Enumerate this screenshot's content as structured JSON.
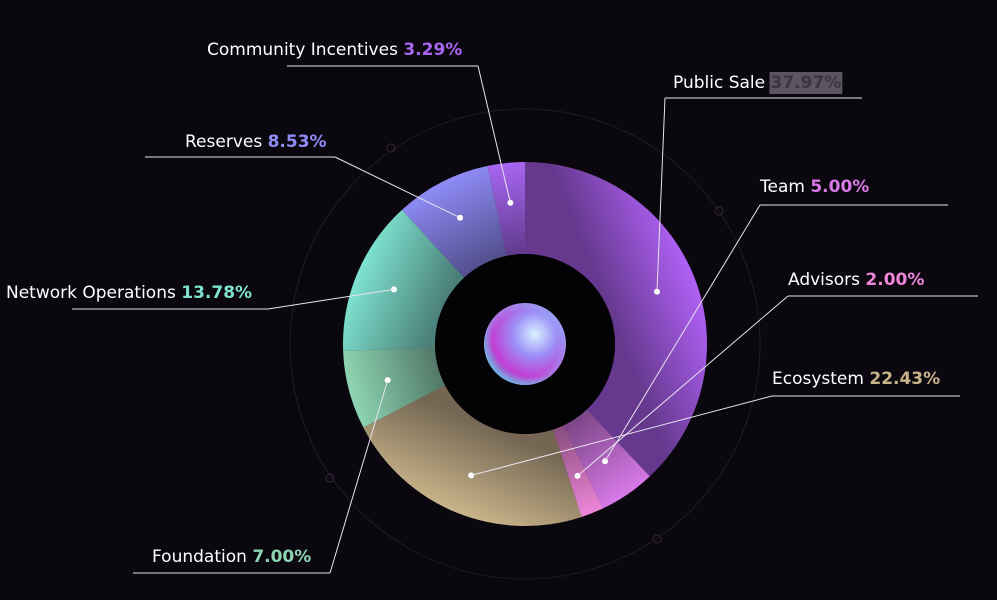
{
  "chart_data": {
    "type": "pie",
    "style": "donut",
    "title": "",
    "slices": [
      {
        "label": "Public Sale",
        "value": 37.97,
        "display": "37.97%",
        "color": "#b061f6"
      },
      {
        "label": "Team",
        "value": 5.0,
        "display": "5.00%",
        "color": "#d77ae8"
      },
      {
        "label": "Advisors",
        "value": 2.0,
        "display": "2.00%",
        "color": "#ee86d8"
      },
      {
        "label": "Ecosystem",
        "value": 22.43,
        "display": "22.43%",
        "color": "#c9b48a"
      },
      {
        "label": "Foundation",
        "value": 7.0,
        "display": "7.00%",
        "color": "#8ed6b3"
      },
      {
        "label": "Network Operations",
        "value": 13.78,
        "display": "13.78%",
        "color": "#7fe3d0"
      },
      {
        "label": "Reserves",
        "value": 8.53,
        "display": "8.53%",
        "color": "#8f8cf7"
      },
      {
        "label": "Community Incentives",
        "value": 3.29,
        "display": "3.29%",
        "color": "#a866f2"
      }
    ],
    "legend": "none",
    "data_labels": "outside with leader lines"
  }
}
